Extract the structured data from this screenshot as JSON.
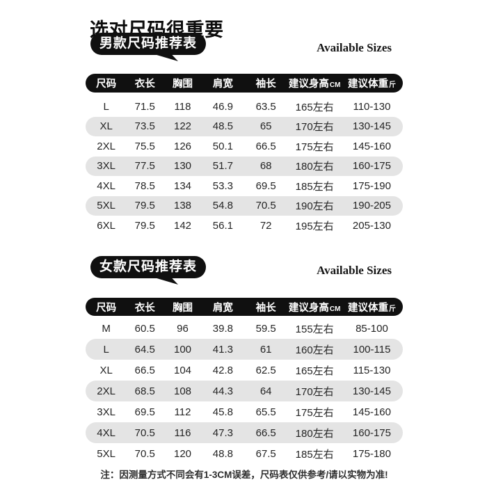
{
  "page": {
    "title": "选对尺码很重要",
    "note": "注：因测量方式不同会有1-3CM误差，尺码表仅供参考/请以实物为准!"
  },
  "colors": {
    "header_bg": "#101010",
    "badge_bg": "#101010",
    "row_alt_bg": "#e4e4e4",
    "cell_text": "#242424"
  },
  "sections": [
    {
      "id": "men",
      "badge_label": "男款尺码推荐表",
      "available_label": "Available Sizes",
      "table": {
        "headers": [
          "尺码",
          "衣长",
          "胸围",
          "肩宽",
          "袖长",
          "建议身高",
          "建议体重"
        ],
        "header_units": [
          "",
          "",
          "",
          "",
          "",
          "CM",
          "斤"
        ],
        "rows": [
          [
            "L",
            "71.5",
            "118",
            "46.9",
            "63.5",
            "165左右",
            "110-130"
          ],
          [
            "XL",
            "73.5",
            "122",
            "48.5",
            "65",
            "170左右",
            "130-145"
          ],
          [
            "2XL",
            "75.5",
            "126",
            "50.1",
            "66.5",
            "175左右",
            "145-160"
          ],
          [
            "3XL",
            "77.5",
            "130",
            "51.7",
            "68",
            "180左右",
            "160-175"
          ],
          [
            "4XL",
            "78.5",
            "134",
            "53.3",
            "69.5",
            "185左右",
            "175-190"
          ],
          [
            "5XL",
            "79.5",
            "138",
            "54.8",
            "70.5",
            "190左右",
            "190-205"
          ],
          [
            "6XL",
            "79.5",
            "142",
            "56.1",
            "72",
            "195左右",
            "205-130"
          ]
        ]
      }
    },
    {
      "id": "women",
      "badge_label": "女款尺码推荐表",
      "available_label": "Available Sizes",
      "table": {
        "headers": [
          "尺码",
          "衣长",
          "胸围",
          "肩宽",
          "袖长",
          "建议身高",
          "建议体重"
        ],
        "header_units": [
          "",
          "",
          "",
          "",
          "",
          "CM",
          "斤"
        ],
        "rows": [
          [
            "M",
            "60.5",
            "96",
            "39.8",
            "59.5",
            "155左右",
            "85-100"
          ],
          [
            "L",
            "64.5",
            "100",
            "41.3",
            "61",
            "160左右",
            "100-115"
          ],
          [
            "XL",
            "66.5",
            "104",
            "42.8",
            "62.5",
            "165左右",
            "115-130"
          ],
          [
            "2XL",
            "68.5",
            "108",
            "44.3",
            "64",
            "170左右",
            "130-145"
          ],
          [
            "3XL",
            "69.5",
            "112",
            "45.8",
            "65.5",
            "175左右",
            "145-160"
          ],
          [
            "4XL",
            "70.5",
            "116",
            "47.3",
            "66.5",
            "180左右",
            "160-175"
          ],
          [
            "5XL",
            "70.5",
            "120",
            "48.8",
            "67.5",
            "185左右",
            "175-180"
          ]
        ]
      }
    }
  ]
}
